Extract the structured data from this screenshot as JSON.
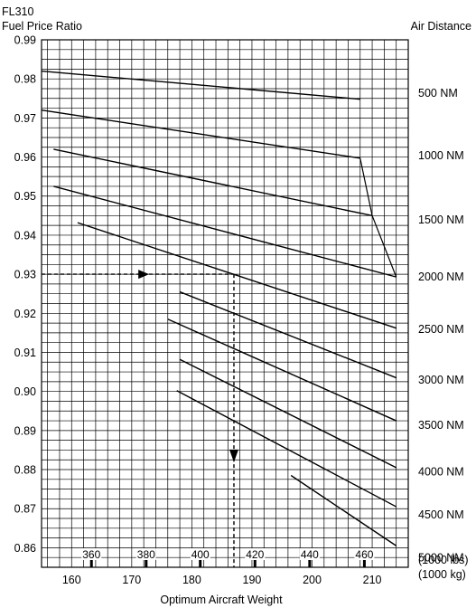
{
  "chart_data": {
    "type": "line",
    "title": "FL310",
    "ylabel": "Fuel Price Ratio",
    "right_label": "Air Distance",
    "xlabel": "Optimum Aircraft Weight",
    "x_unit_lbs": "(1000 lbs)",
    "x_unit_kg": "(1000 kg)",
    "xlim": [
      155,
      216
    ],
    "ylim": [
      0.855,
      0.99
    ],
    "grid": true,
    "y_ticks": [
      "0.99",
      "0.98",
      "0.97",
      "0.96",
      "0.95",
      "0.94",
      "0.93",
      "0.92",
      "0.91",
      "0.90",
      "0.89",
      "0.88",
      "0.87",
      "0.86"
    ],
    "x_ticks_kg": [
      {
        "label": "160",
        "value": 160
      },
      {
        "label": "170",
        "value": 170
      },
      {
        "label": "180",
        "value": 180
      },
      {
        "label": "190",
        "value": 190
      },
      {
        "label": "200",
        "value": 200
      },
      {
        "label": "210",
        "value": 210
      }
    ],
    "x_ticks_lbs": [
      {
        "label": "360",
        "value": 163.3
      },
      {
        "label": "380",
        "value": 172.4
      },
      {
        "label": "400",
        "value": 181.4
      },
      {
        "label": "420",
        "value": 190.5
      },
      {
        "label": "440",
        "value": 199.6
      },
      {
        "label": "460",
        "value": 208.7
      }
    ],
    "right_labels": [
      {
        "label": "500 NM",
        "y": 0.9765
      },
      {
        "label": "1000 NM",
        "y": 0.9605
      },
      {
        "label": "1500 NM",
        "y": 0.944
      },
      {
        "label": "2000 NM",
        "y": 0.9295
      },
      {
        "label": "2500 NM",
        "y": 0.916
      },
      {
        "label": "3000 NM",
        "y": 0.903
      },
      {
        "label": "3500 NM",
        "y": 0.8915
      },
      {
        "label": "4000 NM",
        "y": 0.8795
      },
      {
        "label": "4500 NM",
        "y": 0.8685
      },
      {
        "label": "5000 NM",
        "y": 0.8575
      }
    ],
    "series": [
      {
        "points": [
          [
            155,
            0.982
          ],
          [
            208,
            0.9748
          ]
        ]
      },
      {
        "points": [
          [
            155,
            0.972
          ],
          [
            208,
            0.9597
          ]
        ]
      },
      {
        "points": [
          [
            157,
            0.962
          ],
          [
            210,
            0.945
          ]
        ]
      },
      {
        "points": [
          [
            157,
            0.9525
          ],
          [
            214,
            0.9293
          ]
        ]
      },
      {
        "points": [
          [
            161,
            0.9432
          ],
          [
            214,
            0.9162
          ]
        ]
      },
      {
        "points": [
          [
            178,
            0.9255
          ],
          [
            214,
            0.9035
          ]
        ]
      },
      {
        "points": [
          [
            176,
            0.9185
          ],
          [
            214,
            0.8925
          ]
        ]
      },
      {
        "points": [
          [
            178,
            0.9082
          ],
          [
            214,
            0.8805
          ]
        ]
      },
      {
        "points": [
          [
            177.5,
            0.9002
          ],
          [
            214,
            0.8705
          ]
        ]
      },
      {
        "points": [
          [
            196.5,
            0.8785
          ],
          [
            214,
            0.8605
          ]
        ]
      }
    ],
    "envelope": [
      [
        208,
        0.9597
      ],
      [
        210,
        0.945
      ],
      [
        214,
        0.9293
      ]
    ],
    "example_path": {
      "horizontal": [
        [
          155,
          0.93
        ],
        [
          187,
          0.93
        ]
      ],
      "vertical": [
        [
          187,
          0.93
        ],
        [
          187,
          0.855
        ]
      ],
      "arrow_right_at": [
        172,
        0.93
      ],
      "arrow_down_at": [
        187,
        0.8835
      ]
    }
  }
}
